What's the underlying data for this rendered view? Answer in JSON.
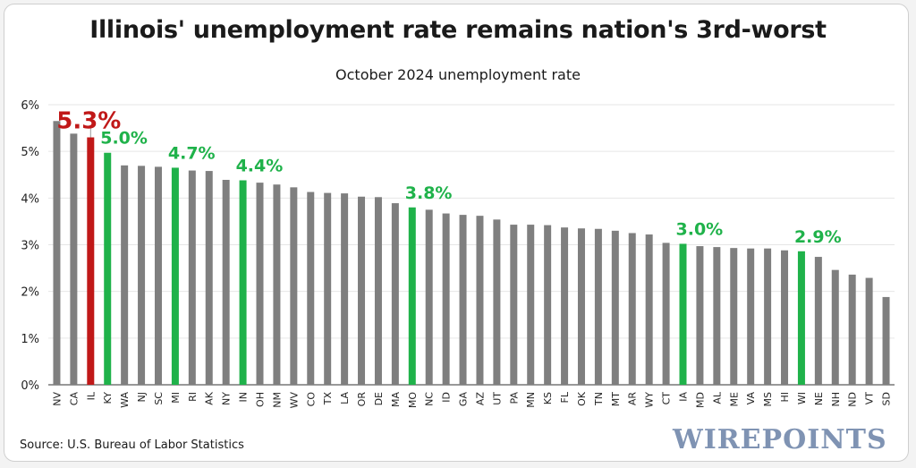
{
  "chart_data": {
    "type": "bar",
    "title": "Illinois' unemployment rate remains nation's 3rd-worst",
    "subtitle": "October 2024 unemployment rate",
    "source": "Source: U.S. Bureau of Labor Statistics",
    "brand": "WIREPOINTS",
    "ylim": [
      0,
      6
    ],
    "yticks": [
      "0%",
      "1%",
      "2%",
      "3%",
      "4%",
      "5%",
      "6%"
    ],
    "grid": true,
    "categories": [
      "NV",
      "CA",
      "IL",
      "KY",
      "WA",
      "NJ",
      "SC",
      "MI",
      "RI",
      "AK",
      "NY",
      "IN",
      "OH",
      "NM",
      "WV",
      "CO",
      "TX",
      "LA",
      "OR",
      "DE",
      "MA",
      "MO",
      "NC",
      "ID",
      "GA",
      "AZ",
      "UT",
      "PA",
      "MN",
      "KS",
      "FL",
      "OK",
      "TN",
      "MT",
      "AR",
      "WY",
      "CT",
      "IA",
      "MD",
      "AL",
      "ME",
      "VA",
      "MS",
      "HI",
      "WI",
      "NE",
      "NH",
      "ND",
      "VT",
      "SD"
    ],
    "values": [
      5.65,
      5.38,
      5.3,
      4.97,
      4.7,
      4.69,
      4.67,
      4.65,
      4.59,
      4.58,
      4.39,
      4.38,
      4.33,
      4.29,
      4.23,
      4.13,
      4.11,
      4.1,
      4.03,
      4.02,
      3.89,
      3.8,
      3.75,
      3.67,
      3.64,
      3.62,
      3.54,
      3.43,
      3.43,
      3.42,
      3.37,
      3.35,
      3.34,
      3.3,
      3.25,
      3.22,
      3.04,
      3.02,
      2.97,
      2.95,
      2.93,
      2.92,
      2.92,
      2.88,
      2.86,
      2.74,
      2.46,
      2.36,
      2.29,
      1.88
    ],
    "highlights": {
      "IL": "red",
      "KY": "green",
      "MI": "green",
      "IN": "green",
      "MO": "green",
      "IA": "green",
      "WI": "green"
    },
    "annotations": [
      {
        "category": "IL",
        "label": "5.3%",
        "color": "red"
      },
      {
        "category": "KY",
        "label": "5.0%",
        "color": "green"
      },
      {
        "category": "MI",
        "label": "4.7%",
        "color": "green"
      },
      {
        "category": "IN",
        "label": "4.4%",
        "color": "green"
      },
      {
        "category": "MO",
        "label": "3.8%",
        "color": "green"
      },
      {
        "category": "IA",
        "label": "3.0%",
        "color": "green"
      },
      {
        "category": "WI",
        "label": "2.9%",
        "color": "green"
      }
    ],
    "colors": {
      "default": "#7f7f7f",
      "red": "#c01818",
      "green": "#1fb24a",
      "grid": "#e6e6e6",
      "axis": "#333333"
    }
  }
}
